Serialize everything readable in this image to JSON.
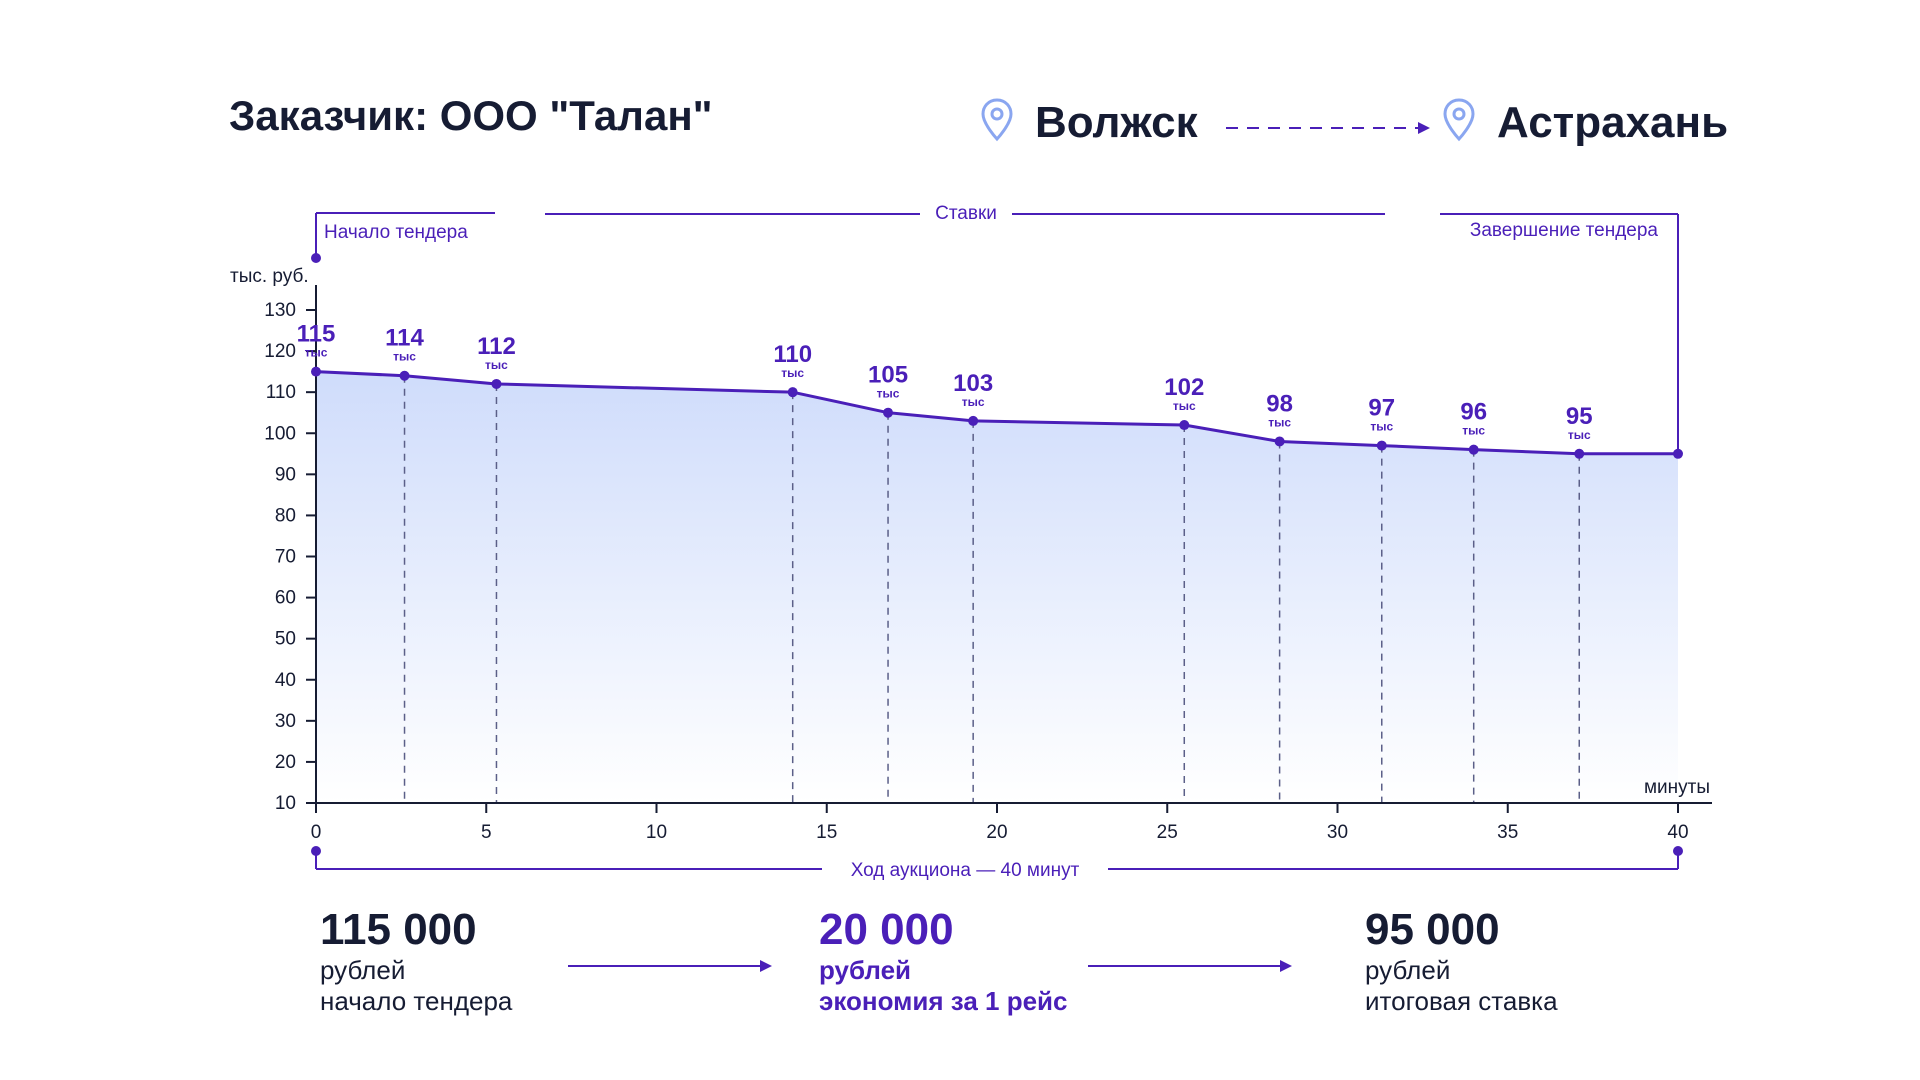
{
  "header": {
    "customer": "Заказчик: ООО \"Талан\"",
    "origin": "Волжск",
    "destination": "Астрахань",
    "origin_icon": "location-pin-icon",
    "destination_icon": "location-pin-icon"
  },
  "chart_data": {
    "type": "area",
    "ylabel": "тыс. руб.",
    "xlabel": "минуты",
    "ylim": [
      10,
      130
    ],
    "xlim": [
      0,
      40
    ],
    "yticks": [
      10,
      20,
      30,
      40,
      50,
      60,
      70,
      80,
      90,
      100,
      110,
      120,
      130
    ],
    "xticks": [
      0,
      5,
      10,
      15,
      20,
      25,
      30,
      35,
      40
    ],
    "grid": false,
    "unit_label": "тыс",
    "series": [
      {
        "x": [
          0,
          2.6,
          5.3,
          14,
          16.8,
          19.3,
          25.5,
          28.3,
          31.3,
          34,
          37.1,
          40
        ],
        "y": [
          115,
          114,
          112,
          110,
          105,
          103,
          102,
          98,
          97,
          96,
          95,
          95
        ],
        "labels": [
          "115",
          "114",
          "112",
          "110",
          "105",
          "103",
          "102",
          "98",
          "97",
          "96",
          "95",
          ""
        ]
      }
    ],
    "annotations": {
      "start": "Начало тендера",
      "bids": "Ставки",
      "end": "Завершение тендера",
      "duration": "Ход аукциона — 40 минут"
    },
    "colors": {
      "line": "#4a1fb8",
      "fill_top": "#cfdcfb",
      "fill_bottom": "#ffffff",
      "axis": "#161c33",
      "bracket": "#4a1fb8"
    }
  },
  "summary": {
    "start": {
      "value": "115 000",
      "unit": "рублей",
      "caption": "начало тендера"
    },
    "savings": {
      "value": "20 000",
      "unit": "рублей",
      "caption": "экономия за 1 рейс"
    },
    "final": {
      "value": "95 000",
      "unit": "рублей",
      "caption": "итоговая ставка"
    }
  }
}
